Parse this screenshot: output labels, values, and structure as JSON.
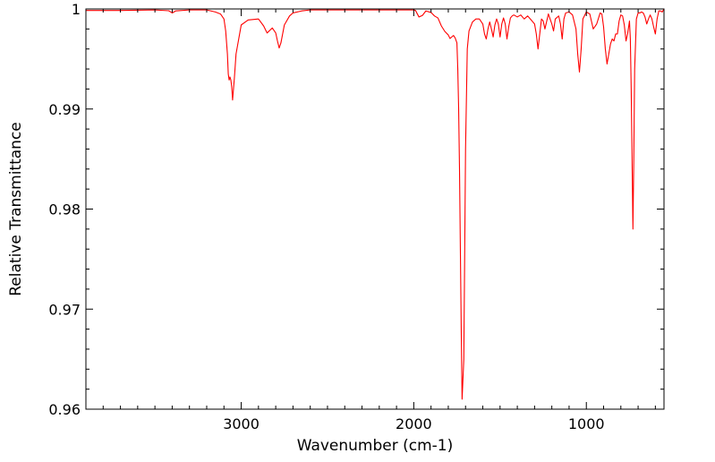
{
  "chart_data": {
    "type": "line",
    "title": "",
    "xlabel": "Wavenumber (cm-1)",
    "ylabel": "Relative Transmittance",
    "xlim": [
      3900,
      550
    ],
    "ylim": [
      0.96,
      1.0
    ],
    "x_reversed": true,
    "grid": false,
    "legend": "none",
    "x_ticks": [
      3000,
      2000,
      1000
    ],
    "x_tick_labels": [
      "3000",
      "2000",
      "1000"
    ],
    "y_ticks": [
      0.96,
      0.97,
      0.98,
      0.99,
      1.0
    ],
    "y_tick_labels": [
      "0.96",
      "0.97",
      "0.98",
      "0.99",
      "1"
    ],
    "series": [
      {
        "color": "#ff0000",
        "x": [
          3900,
          3700,
          3500,
          3420,
          3400,
          3380,
          3300,
          3200,
          3150,
          3120,
          3100,
          3090,
          3080,
          3075,
          3070,
          3065,
          3060,
          3055,
          3050,
          3040,
          3030,
          3000,
          2960,
          2900,
          2870,
          2850,
          2820,
          2800,
          2790,
          2780,
          2770,
          2750,
          2720,
          2700,
          2650,
          2600,
          2500,
          2400,
          2300,
          2200,
          2100,
          2000,
          1990,
          1970,
          1950,
          1930,
          1900,
          1880,
          1860,
          1840,
          1820,
          1800,
          1790,
          1770,
          1760,
          1750,
          1745,
          1740,
          1735,
          1730,
          1725,
          1720,
          1710,
          1700,
          1690,
          1680,
          1660,
          1640,
          1620,
          1600,
          1590,
          1580,
          1570,
          1560,
          1550,
          1540,
          1530,
          1520,
          1510,
          1500,
          1490,
          1480,
          1470,
          1460,
          1450,
          1440,
          1430,
          1420,
          1400,
          1380,
          1360,
          1340,
          1320,
          1300,
          1290,
          1280,
          1270,
          1260,
          1250,
          1240,
          1220,
          1200,
          1190,
          1180,
          1160,
          1150,
          1140,
          1130,
          1120,
          1100,
          1080,
          1060,
          1050,
          1040,
          1030,
          1020,
          1000,
          980,
          960,
          940,
          920,
          910,
          900,
          890,
          880,
          870,
          860,
          850,
          840,
          830,
          820,
          810,
          800,
          790,
          780,
          770,
          760,
          750,
          745,
          740,
          735,
          730,
          725,
          720,
          710,
          700,
          690,
          680,
          670,
          660,
          650,
          640,
          630,
          620,
          610,
          600,
          590,
          580,
          570,
          560,
          550
        ],
        "y": [
          0.99985,
          0.99985,
          0.9999,
          0.99982,
          0.9996,
          0.9998,
          0.9999,
          0.9999,
          0.9997,
          0.9995,
          0.999,
          0.9978,
          0.9955,
          0.9935,
          0.9929,
          0.9932,
          0.9929,
          0.9922,
          0.9909,
          0.993,
          0.9955,
          0.9984,
          0.9989,
          0.999,
          0.9983,
          0.9976,
          0.9981,
          0.9976,
          0.9968,
          0.9961,
          0.9966,
          0.9984,
          0.9993,
          0.9996,
          0.9998,
          0.9999,
          0.9999,
          0.9999,
          0.9999,
          0.9999,
          0.9999,
          0.9999,
          0.99985,
          0.9992,
          0.99935,
          0.9998,
          0.99965,
          0.9993,
          0.9991,
          0.9983,
          0.99775,
          0.9974,
          0.99705,
          0.99735,
          0.9971,
          0.9966,
          0.994,
          0.99,
          0.984,
          0.976,
          0.968,
          0.961,
          0.965,
          0.986,
          0.996,
          0.9978,
          0.9987,
          0.999,
          0.999,
          0.9985,
          0.9975,
          0.997,
          0.998,
          0.9987,
          0.998,
          0.9972,
          0.9984,
          0.999,
          0.9985,
          0.9972,
          0.9985,
          0.9991,
          0.9985,
          0.997,
          0.9982,
          0.9991,
          0.9993,
          0.9994,
          0.9992,
          0.9994,
          0.999,
          0.9993,
          0.9989,
          0.9985,
          0.9975,
          0.996,
          0.9975,
          0.999,
          0.9988,
          0.998,
          0.9995,
          0.9985,
          0.9978,
          0.999,
          0.9993,
          0.9985,
          0.997,
          0.999,
          0.9996,
          0.9997,
          0.9994,
          0.998,
          0.9955,
          0.9937,
          0.996,
          0.999,
          0.9997,
          0.9995,
          0.998,
          0.9985,
          0.9996,
          0.9995,
          0.9982,
          0.996,
          0.9945,
          0.9955,
          0.9965,
          0.997,
          0.9968,
          0.9975,
          0.9975,
          0.9988,
          0.9994,
          0.9993,
          0.9984,
          0.9968,
          0.9976,
          0.9988,
          0.997,
          0.992,
          0.985,
          0.978,
          0.985,
          0.994,
          0.999,
          0.9996,
          0.9996,
          0.9997,
          0.9996,
          0.9992,
          0.9985,
          0.999,
          0.9994,
          0.999,
          0.9982,
          0.9975,
          0.999,
          0.9998,
          0.9998,
          0.9997,
          1.0
        ]
      }
    ]
  }
}
